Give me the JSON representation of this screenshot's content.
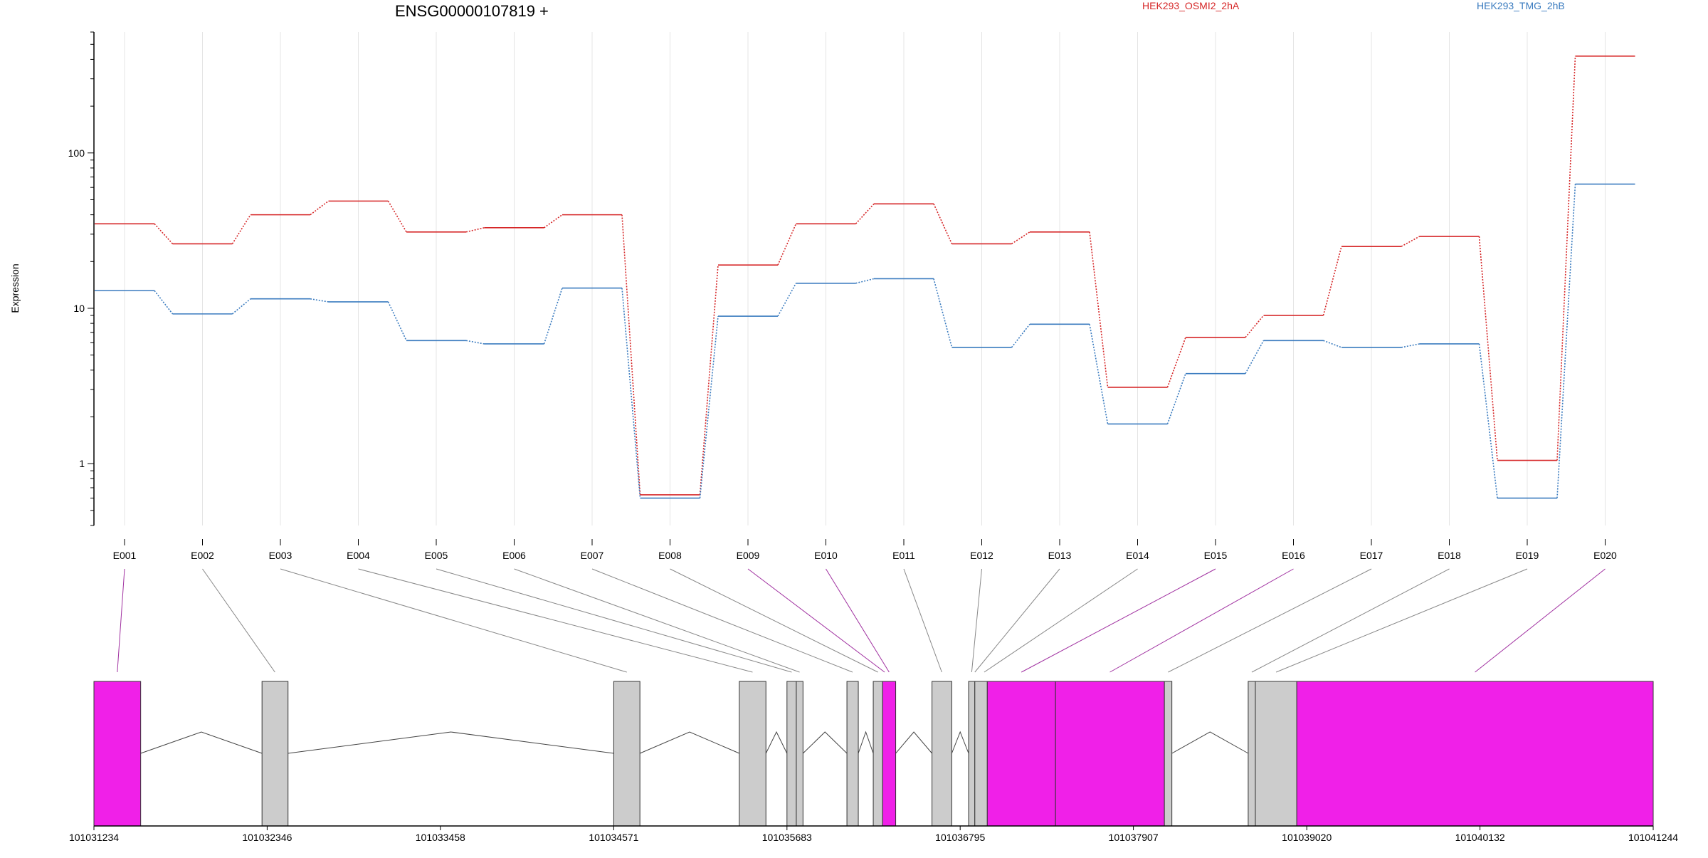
{
  "chart_data": {
    "type": "line",
    "title": "ENSG00000107819 +",
    "ylabel": "Expression",
    "xlabel": "",
    "yscale": "log",
    "ylim": [
      0.4,
      600
    ],
    "yticks": [
      1,
      10,
      100
    ],
    "ytick_labels": [
      "1",
      "10",
      "100"
    ],
    "grid": "vertical",
    "legend": "top",
    "categories": [
      "E001",
      "E002",
      "E003",
      "E004",
      "E005",
      "E006",
      "E007",
      "E008",
      "E009",
      "E010",
      "E011",
      "E012",
      "E013",
      "E014",
      "E015",
      "E016",
      "E017",
      "E018",
      "E019",
      "E020"
    ],
    "series": [
      {
        "name": "HEK293_OSMI2_2hA",
        "color": "#d62728",
        "values": [
          35,
          26,
          40,
          49,
          31,
          33,
          40,
          0.63,
          19,
          35,
          47,
          26,
          31,
          3.1,
          6.5,
          9,
          25,
          29,
          1.05,
          420
        ]
      },
      {
        "name": "HEK293_TMG_2hB",
        "color": "#3a7bbf",
        "values": [
          13,
          9.2,
          11.5,
          11,
          6.2,
          5.9,
          13.5,
          0.6,
          8.9,
          14.5,
          15.5,
          5.6,
          7.9,
          1.8,
          3.8,
          6.2,
          5.6,
          5.9,
          0.6,
          63
        ]
      }
    ],
    "gene_model": {
      "xlim": [
        101031234,
        101041244
      ],
      "xticks": [
        101031234,
        101032346,
        101033458,
        101034571,
        101035683,
        101036795,
        101037907,
        101039020,
        101040132,
        101041244
      ],
      "xtick_labels": [
        "101031234",
        "101032346",
        "101033458",
        "101034571",
        "101035683",
        "101036795",
        "101037907",
        "101039020",
        "101040132",
        "101041244"
      ],
      "highlight_color": "#f020e8",
      "base_color": "#cccccc",
      "exons": [
        {
          "start": 101031234,
          "end": 101031534,
          "highlight": true
        },
        {
          "start": 101032313,
          "end": 101032480,
          "highlight": false
        },
        {
          "start": 101034571,
          "end": 101034739,
          "highlight": false
        },
        {
          "start": 101035377,
          "end": 101035548,
          "highlight": false
        },
        {
          "start": 101035683,
          "end": 101035743,
          "highlight": false
        },
        {
          "start": 101035743,
          "end": 101035786,
          "highlight": false
        },
        {
          "start": 101036068,
          "end": 101036141,
          "highlight": false
        },
        {
          "start": 101036237,
          "end": 101036297,
          "highlight": false
        },
        {
          "start": 101036297,
          "end": 101036381,
          "highlight": true
        },
        {
          "start": 101036614,
          "end": 101036741,
          "highlight": false
        },
        {
          "start": 101036849,
          "end": 101036889,
          "highlight": false
        },
        {
          "start": 101036889,
          "end": 101036969,
          "highlight": false
        },
        {
          "start": 101036969,
          "end": 101037407,
          "highlight": true
        },
        {
          "start": 101037407,
          "end": 101038106,
          "highlight": true
        },
        {
          "start": 101038106,
          "end": 101038154,
          "highlight": false
        },
        {
          "start": 101038644,
          "end": 101038690,
          "highlight": false
        },
        {
          "start": 101038690,
          "end": 101038956,
          "highlight": false
        },
        {
          "start": 101038956,
          "end": 101041244,
          "highlight": true
        }
      ],
      "links": [
        {
          "label": "E001",
          "pos": 101031384,
          "highlight": true
        },
        {
          "label": "E002",
          "pos": 101032396,
          "highlight": false
        },
        {
          "label": "E003",
          "pos": 101034655,
          "highlight": false
        },
        {
          "label": "E004",
          "pos": 101035462,
          "highlight": false
        },
        {
          "label": "E005",
          "pos": 101035713,
          "highlight": false
        },
        {
          "label": "E006",
          "pos": 101035764,
          "highlight": false
        },
        {
          "label": "E007",
          "pos": 101036104,
          "highlight": false
        },
        {
          "label": "E008",
          "pos": 101036267,
          "highlight": false
        },
        {
          "label": "E009",
          "pos": 101036310,
          "highlight": true
        },
        {
          "label": "E010",
          "pos": 101036339,
          "highlight": true
        },
        {
          "label": "E011",
          "pos": 101036677,
          "highlight": false
        },
        {
          "label": "E012",
          "pos": 101036869,
          "highlight": false
        },
        {
          "label": "E013",
          "pos": 101036889,
          "highlight": false
        },
        {
          "label": "E014",
          "pos": 101036949,
          "highlight": false
        },
        {
          "label": "E015",
          "pos": 101037188,
          "highlight": true
        },
        {
          "label": "E016",
          "pos": 101037756,
          "highlight": true
        },
        {
          "label": "E017",
          "pos": 101038130,
          "highlight": false
        },
        {
          "label": "E018",
          "pos": 101038667,
          "highlight": false
        },
        {
          "label": "E019",
          "pos": 101038823,
          "highlight": false
        },
        {
          "label": "E020",
          "pos": 101040100,
          "highlight": true
        }
      ]
    }
  }
}
